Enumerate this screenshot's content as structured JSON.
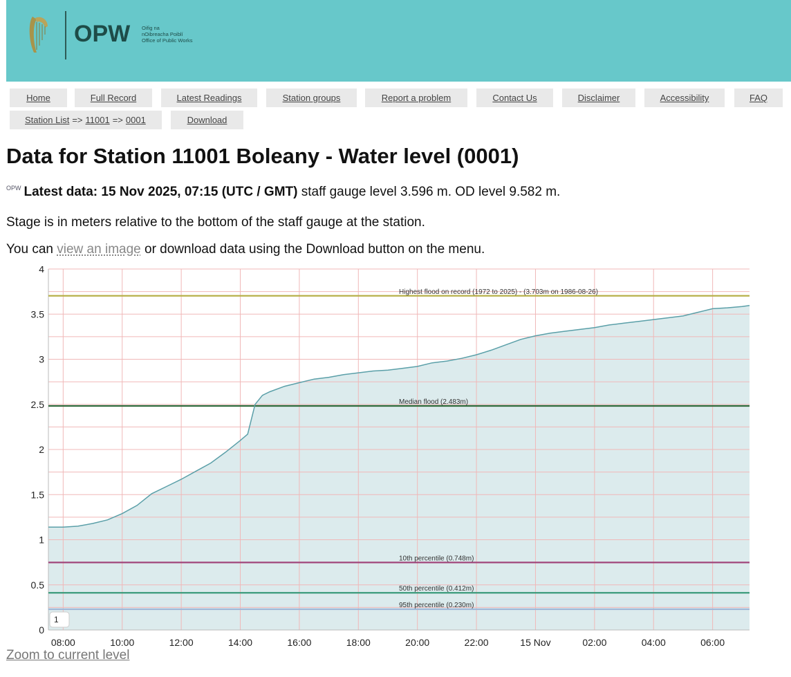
{
  "header": {
    "logo_text": "OPW",
    "logo_subtitle_1": "Oifig na",
    "logo_subtitle_2": "nOibreacha Poiblí",
    "logo_subtitle_3": "Office of Public Works",
    "banner_color": "#67c8ca"
  },
  "nav": {
    "items": [
      "Home",
      "Full Record",
      "Latest Readings",
      "Station groups",
      "Report a problem",
      "Contact Us",
      "Disclaimer",
      "Accessibility",
      "FAQ"
    ],
    "breadcrumb_root": "Station List",
    "breadcrumb_arrow": "=>",
    "breadcrumb_station": "11001",
    "breadcrumb_sensor": "0001",
    "download": "Download"
  },
  "page": {
    "title": "Data for Station 11001 Boleany - Water level (0001)",
    "latest_logo": "OPW",
    "latest_bold": "Latest data: 15 Nov 2025, 07:15 (UTC / GMT)",
    "latest_rest": " staff gauge level 3.596 m. OD level 9.582 m.",
    "stage_note": "Stage is in meters relative to the bottom of the staff gauge at the station.",
    "image_note_pre": "You can ",
    "image_note_link": "view an image",
    "image_note_post": " or download data using the Download button on the menu.",
    "zoom_link": "Zoom to current level"
  },
  "chart_data": {
    "type": "area",
    "title": "",
    "xlabel": "",
    "ylabel": "",
    "ylim": [
      0,
      4
    ],
    "yticks": [
      0,
      0.5,
      1,
      1.5,
      2,
      2.5,
      3,
      3.5,
      4
    ],
    "ytick_labels": [
      "0",
      "0.5",
      "1",
      "1.5",
      "2",
      "2.5",
      "3",
      "3.5",
      "4"
    ],
    "x_unit": "hours since 14 Nov 00:00",
    "xlim": [
      7.5,
      31.25
    ],
    "xticks": [
      8,
      10,
      12,
      14,
      16,
      18,
      20,
      22,
      24,
      26,
      28,
      30
    ],
    "xtick_labels": [
      "08:00",
      "10:00",
      "12:00",
      "14:00",
      "16:00",
      "18:00",
      "20:00",
      "22:00",
      "15 Nov",
      "02:00",
      "04:00",
      "06:00"
    ],
    "grid": true,
    "legend_badge": "1",
    "series": [
      {
        "name": "Water level (0001)",
        "color": "#5a9fa8",
        "fill": "#dcebed",
        "x": [
          7.5,
          8.0,
          8.5,
          9.0,
          9.5,
          10.0,
          10.5,
          11.0,
          11.5,
          12.0,
          12.5,
          13.0,
          13.5,
          14.0,
          14.25,
          14.5,
          14.75,
          15.0,
          15.5,
          16.0,
          16.5,
          17.0,
          17.5,
          18.0,
          18.5,
          19.0,
          19.5,
          20.0,
          20.5,
          21.0,
          21.5,
          22.0,
          22.5,
          23.0,
          23.5,
          24.0,
          24.5,
          25.0,
          25.5,
          26.0,
          26.5,
          27.0,
          27.5,
          28.0,
          28.5,
          29.0,
          29.5,
          30.0,
          30.5,
          31.0,
          31.25
        ],
        "y": [
          1.14,
          1.14,
          1.15,
          1.18,
          1.22,
          1.29,
          1.38,
          1.51,
          1.59,
          1.67,
          1.76,
          1.85,
          1.97,
          2.1,
          2.17,
          2.5,
          2.6,
          2.64,
          2.7,
          2.74,
          2.78,
          2.8,
          2.83,
          2.85,
          2.87,
          2.88,
          2.9,
          2.92,
          2.96,
          2.98,
          3.01,
          3.05,
          3.1,
          3.16,
          3.22,
          3.26,
          3.29,
          3.31,
          3.33,
          3.35,
          3.38,
          3.4,
          3.42,
          3.44,
          3.46,
          3.48,
          3.52,
          3.56,
          3.57,
          3.585,
          3.596
        ]
      }
    ],
    "reference_lines": [
      {
        "label": "Highest flood on record (1972 to 2025) - (3.703m on 1986-08-26)",
        "value": 3.703,
        "color": "#b7b04a"
      },
      {
        "label": "Median flood (2.483m)",
        "value": 2.483,
        "color": "#2f6a3a"
      },
      {
        "label": "10th percentile (0.748m)",
        "value": 0.748,
        "color": "#a0457a"
      },
      {
        "label": "50th percentile (0.412m)",
        "value": 0.412,
        "color": "#3a9a7a"
      },
      {
        "label": "95th percentile (0.230m)",
        "value": 0.23,
        "color": "#9fb8d8"
      }
    ]
  }
}
